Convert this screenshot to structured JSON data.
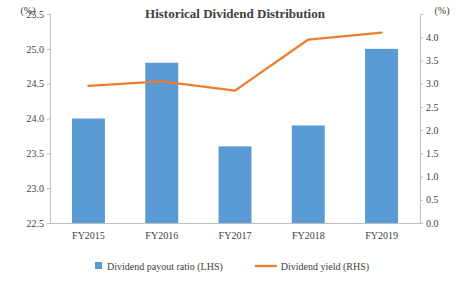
{
  "chart_data": {
    "type": "bar",
    "title": "Historical Dividend Distribution",
    "y_label": "(%)",
    "y2_label": "(%)",
    "categories": [
      "FY2015",
      "FY2016",
      "FY2017",
      "FY2018",
      "FY2019"
    ],
    "series": [
      {
        "name": "Dividend payout ratio (LHS)",
        "type": "bar",
        "color": "#5b9bd5",
        "values": [
          24.0,
          24.8,
          23.6,
          23.9,
          25.0
        ]
      },
      {
        "name": "Dividend yield (RHS)",
        "type": "line",
        "axis": "y2",
        "color": "#ed7d31",
        "values": [
          2.95,
          3.05,
          2.85,
          3.95,
          4.1
        ]
      }
    ],
    "ylim": [
      22.5,
      25.5
    ],
    "yticks": [
      22.5,
      {
        "value": 23,
        "label": "23.0"
      },
      23.5,
      {
        "value": 24,
        "label": "24.0"
      },
      24.5,
      {
        "value": 25,
        "label": "25.0"
      },
      25.5
    ],
    "y2lim": [
      0,
      4.5
    ],
    "y2ticks": [
      {
        "value": 0,
        "label": "0.0"
      },
      0.5,
      {
        "value": 1,
        "label": "1.0"
      },
      1.5,
      {
        "value": 2,
        "label": "2.0"
      },
      2.5,
      {
        "value": 3,
        "label": "3.0"
      },
      3.5,
      {
        "value": 4,
        "label": "4.0"
      }
    ],
    "grid": false,
    "legend": "bottom"
  }
}
